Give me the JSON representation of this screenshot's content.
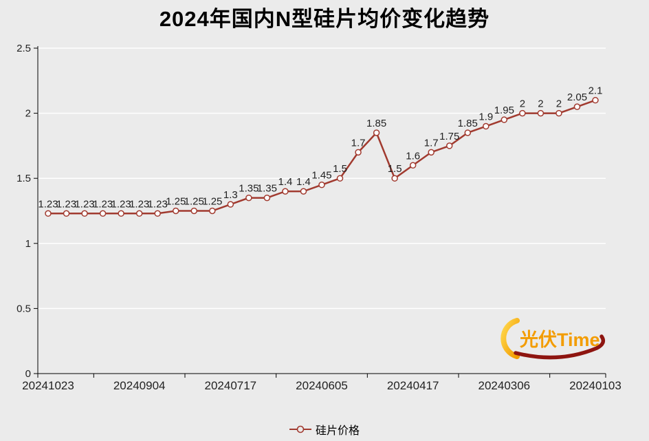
{
  "title": "2024年国内N型硅片均价变化趋势",
  "legend": {
    "label": "硅片价格"
  },
  "logo": {
    "text": "光伏Time"
  },
  "colors": {
    "background": "#ebebeb",
    "line": "#a13a2f",
    "marker_fill": "#ffffff",
    "grid": "#ffffff",
    "axis": "#000000",
    "value_label": "#222222",
    "tick_label": "#222222",
    "logo_orange": "#f39c00",
    "logo_yellow": "#ffd84d",
    "logo_red": "#8e1510"
  },
  "chart_data": {
    "type": "line",
    "title": "2024年国内N型硅片均价变化趋势",
    "series_name": "硅片价格",
    "values": [
      1.23,
      1.23,
      1.23,
      1.23,
      1.23,
      1.23,
      1.23,
      1.25,
      1.25,
      1.25,
      1.3,
      1.35,
      1.35,
      1.4,
      1.4,
      1.45,
      1.5,
      1.7,
      1.85,
      1.5,
      1.6,
      1.7,
      1.75,
      1.85,
      1.9,
      1.95,
      2,
      2,
      2,
      2.05,
      2.1
    ],
    "x_tick_labels": [
      "20241023",
      "20240904",
      "20240717",
      "20240605",
      "20240417",
      "20240306",
      "20240103"
    ],
    "x_label_indices": [
      0,
      5,
      10,
      15,
      20,
      25,
      30
    ],
    "y_ticks": [
      0,
      0.5,
      1,
      1.5,
      2,
      2.5
    ],
    "ylim": [
      0,
      2.5
    ],
    "grid": true,
    "legend_position": "bottom",
    "point_labels_shown": true
  }
}
